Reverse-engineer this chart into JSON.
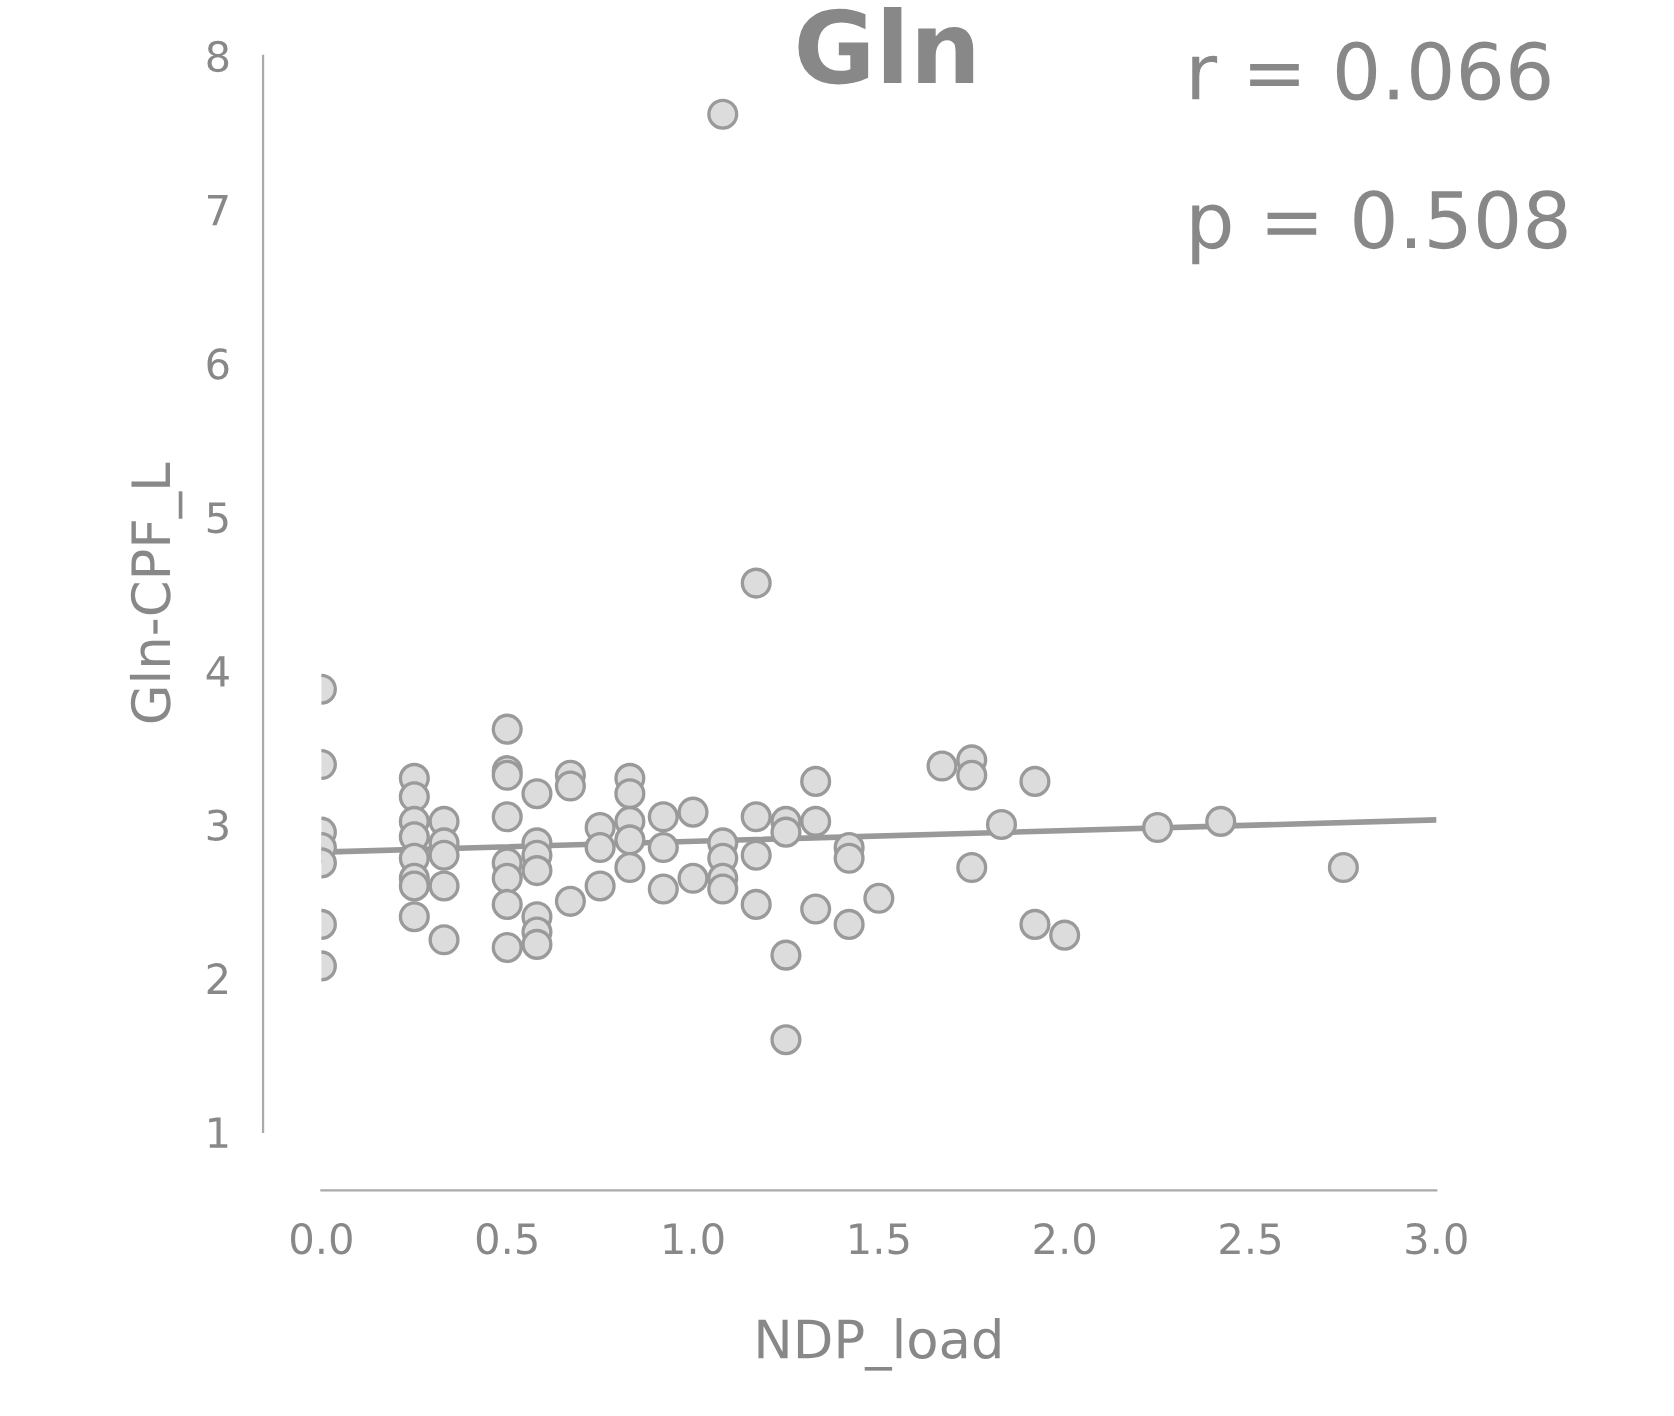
{
  "chart_data": {
    "type": "scatter",
    "title": "Gln",
    "xlabel": "NDP_load",
    "ylabel": "Gln-CPF_L",
    "annotations": [
      "r = 0.066",
      "p = 0.508"
    ],
    "series": [
      {
        "marker": "circle",
        "color": "#dcdcdc",
        "x": [
          0,
          0,
          0,
          0,
          0,
          0,
          0,
          0.25,
          0.25,
          0.25,
          0.25,
          0.25,
          0.25,
          0.25,
          0.25,
          0.33,
          0.33,
          0.33,
          0.33,
          0.33,
          0.5,
          0.5,
          0.5,
          0.5,
          0.5,
          0.5,
          0.5,
          0.5,
          0.58,
          0.58,
          0.58,
          0.58,
          0.58,
          0.58,
          0.58,
          0.67,
          0.67,
          0.67,
          0.75,
          0.75,
          0.75,
          0.83,
          0.83,
          0.83,
          0.83,
          0.83,
          0.92,
          0.92,
          0.92,
          1.0,
          1.0,
          1.08,
          1.08,
          1.08,
          1.08,
          1.08,
          1.17,
          1.17,
          1.17,
          1.17,
          1.25,
          1.25,
          1.25,
          1.25,
          1.33,
          1.33,
          1.33,
          1.42,
          1.42,
          1.42,
          1.5,
          1.67,
          1.75,
          1.75,
          1.75,
          1.83,
          1.92,
          1.92,
          2.0,
          2.25,
          2.42,
          2.75
        ],
        "values": [
          3.88,
          3.39,
          2.95,
          2.85,
          2.75,
          2.35,
          2.08,
          3.3,
          3.18,
          3.02,
          2.92,
          2.78,
          2.65,
          2.6,
          2.4,
          3.02,
          2.88,
          2.8,
          2.6,
          2.25,
          3.62,
          3.35,
          3.32,
          3.05,
          2.75,
          2.65,
          2.48,
          2.2,
          3.2,
          2.88,
          2.8,
          2.7,
          2.4,
          2.3,
          2.22,
          3.32,
          3.25,
          2.5,
          2.98,
          2.85,
          2.6,
          3.3,
          3.2,
          3.02,
          2.9,
          2.72,
          3.05,
          2.85,
          2.58,
          3.08,
          2.65,
          7.62,
          2.88,
          2.78,
          2.65,
          2.58,
          4.57,
          3.05,
          2.8,
          2.48,
          3.02,
          2.95,
          2.15,
          1.6,
          3.28,
          3.02,
          2.45,
          2.85,
          2.78,
          2.35,
          2.52,
          3.38,
          3.42,
          3.32,
          2.72,
          3.0,
          3.28,
          2.35,
          2.28,
          2.98,
          3.02,
          2.72
        ]
      },
      {
        "type": "line",
        "marker": "none",
        "color": "#999999",
        "x": [
          0,
          3.0
        ],
        "values": [
          2.82,
          3.03
        ]
      }
    ],
    "xlim": [
      0,
      3.0
    ],
    "ylim": [
      1,
      8
    ],
    "xticks": [
      {
        "value": 0,
        "label": "0.0"
      },
      {
        "value": 0.5,
        "label": "0.5"
      },
      {
        "value": 1.0,
        "label": "1.0"
      },
      {
        "value": 1.5,
        "label": "1.5"
      },
      {
        "value": 2.0,
        "label": "2.0"
      },
      {
        "value": 2.5,
        "label": "2.5"
      },
      {
        "value": 3.0,
        "label": "3.0"
      }
    ],
    "yticks": [
      1,
      2,
      3,
      4,
      5,
      6,
      7,
      8
    ],
    "grid": false,
    "legend": false
  }
}
